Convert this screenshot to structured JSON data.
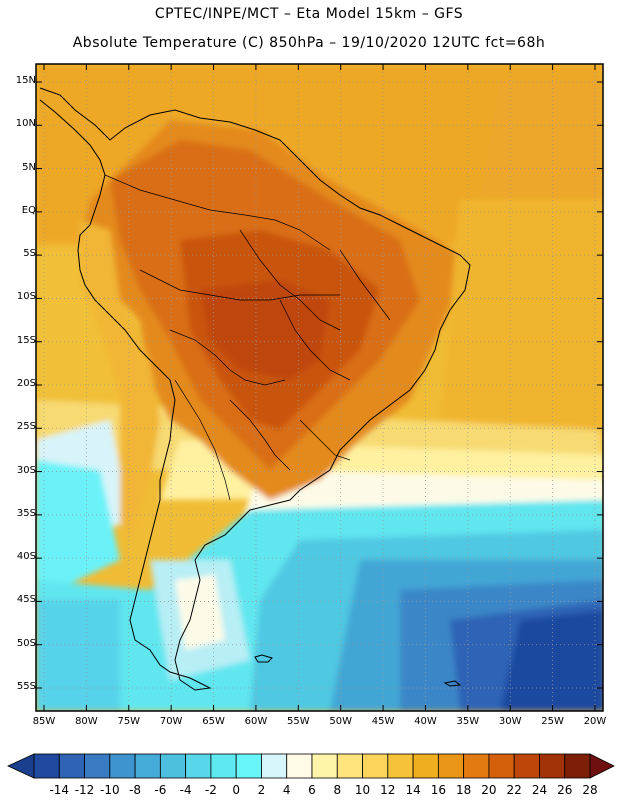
{
  "header": {
    "line1": "CPTEC/INPE/MCT –  Eta Model 15km – GFS",
    "line2": "Absolute Temperature (C) 850hPa – 19/10/2020 12UTC fct=68h"
  },
  "map": {
    "lat_labels": [
      "15N",
      "10N",
      "5N",
      "EQ",
      "5S",
      "10S",
      "15S",
      "20S",
      "25S",
      "30S",
      "35S",
      "40S",
      "45S",
      "50S",
      "55S"
    ],
    "lon_labels": [
      "85W",
      "80W",
      "75W",
      "70W",
      "65W",
      "60W",
      "55W",
      "50W",
      "45W",
      "40W",
      "35W",
      "30W",
      "25W",
      "20W"
    ],
    "lat_values": [
      15,
      10,
      5,
      0,
      -5,
      -10,
      -15,
      -20,
      -25,
      -30,
      -35,
      -40,
      -45,
      -50,
      -55
    ],
    "lon_values": [
      -85,
      -80,
      -75,
      -70,
      -65,
      -60,
      -55,
      -50,
      -45,
      -40,
      -35,
      -30,
      -25,
      -20
    ]
  },
  "colorbar": {
    "labels": [
      "-14",
      "-12",
      "-10",
      "-8",
      "-6",
      "-4",
      "-2",
      "0",
      "2",
      "4",
      "6",
      "8",
      "10",
      "12",
      "14",
      "16",
      "18",
      "20",
      "22",
      "24",
      "26",
      "28"
    ],
    "colors": [
      "#1f4aa0",
      "#2e63b5",
      "#3a7cc4",
      "#3e94cf",
      "#45abd8",
      "#4dc0e0",
      "#58d6ea",
      "#5ee8f0",
      "#68f6fa",
      "#d6f6fb",
      "#fffbe6",
      "#fff5a8",
      "#ffe47d",
      "#fcd45c",
      "#f5c23a",
      "#efae1f",
      "#e99618",
      "#e17a11",
      "#d4600c",
      "#bf4609",
      "#a23208",
      "#7c1f06"
    ]
  }
}
